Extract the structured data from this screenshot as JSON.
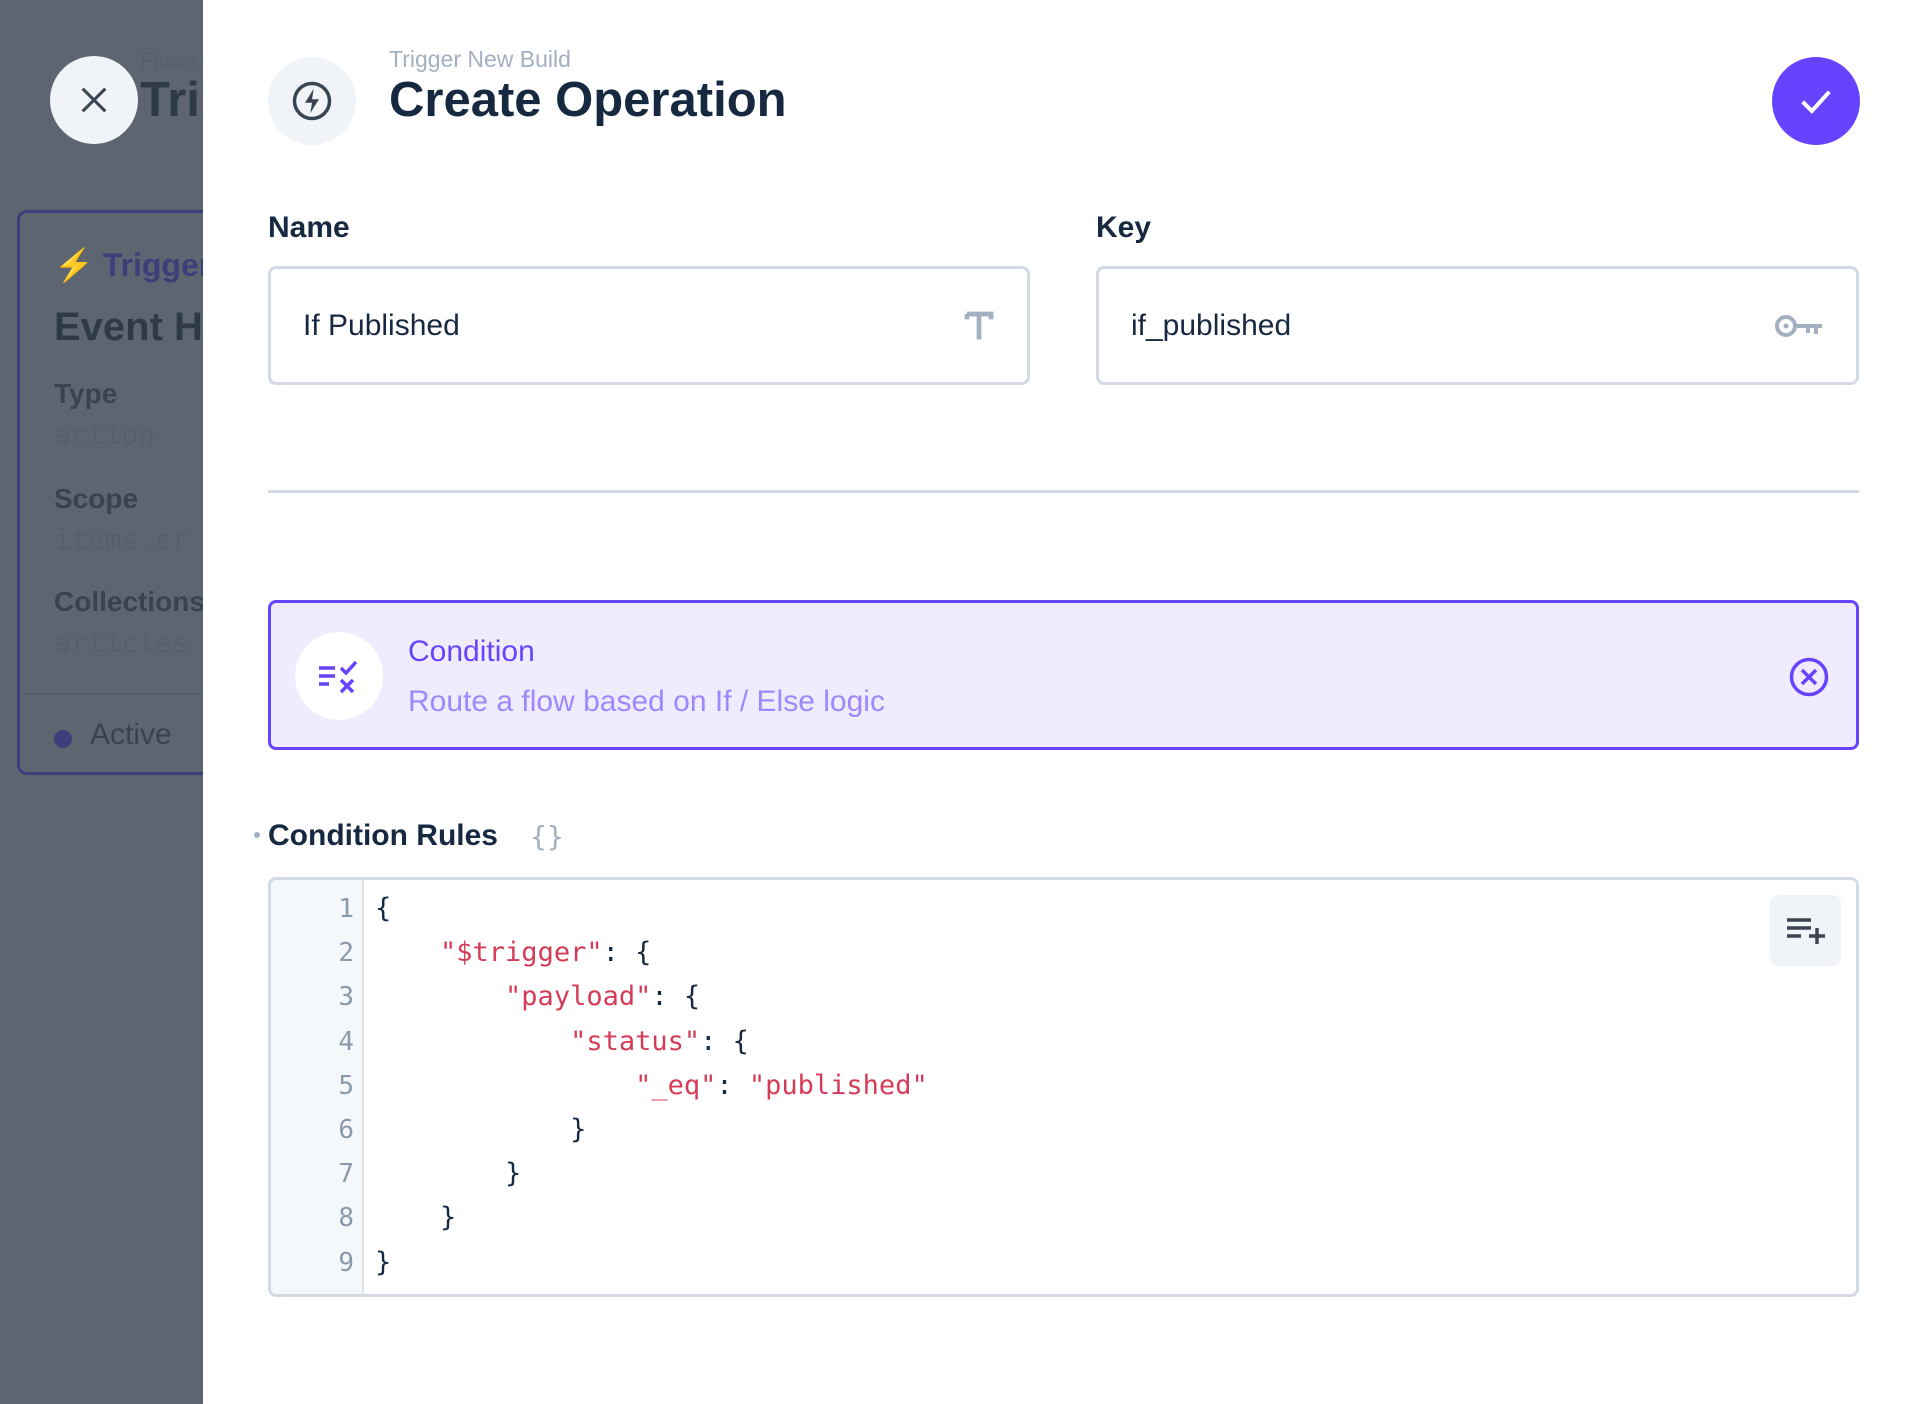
{
  "background": {
    "breadcrumb": "Flows",
    "title": "Tri",
    "card": {
      "trigger_label": "Trigger",
      "title": "Event H",
      "fields": [
        {
          "label": "Type",
          "value": "action"
        },
        {
          "label": "Scope",
          "value": "items.cr"
        },
        {
          "label": "Collections",
          "value": "articles"
        }
      ],
      "status": "Active"
    }
  },
  "header": {
    "breadcrumb": "Trigger New Build",
    "title": "Create Operation",
    "icon": "bolt-icon"
  },
  "fields": {
    "name": {
      "label": "Name",
      "value": "If Published",
      "icon": "text-icon"
    },
    "key": {
      "label": "Key",
      "value": "if_published",
      "icon": "key-icon"
    }
  },
  "operation": {
    "title": "Condition",
    "description": "Route a flow based on If / Else logic",
    "icon": "rule-icon"
  },
  "rules": {
    "label": "Condition Rules",
    "line_numbers": [
      "1",
      "2",
      "3",
      "4",
      "5",
      "6",
      "7",
      "8",
      "9"
    ],
    "lines": [
      [
        {
          "t": "{"
        }
      ],
      [
        {
          "t": "    "
        },
        {
          "t": "\"$trigger\"",
          "s": 1
        },
        {
          "t": ": {"
        }
      ],
      [
        {
          "t": "        "
        },
        {
          "t": "\"payload\"",
          "s": 1
        },
        {
          "t": ": {"
        }
      ],
      [
        {
          "t": "            "
        },
        {
          "t": "\"status\"",
          "s": 1
        },
        {
          "t": ": {"
        }
      ],
      [
        {
          "t": "                "
        },
        {
          "t": "\"_eq\"",
          "s": 1
        },
        {
          "t": ": "
        },
        {
          "t": "\"published\"",
          "s": 1
        }
      ],
      [
        {
          "t": "            }"
        }
      ],
      [
        {
          "t": "        }"
        }
      ],
      [
        {
          "t": "    }"
        }
      ],
      [
        {
          "t": "}"
        }
      ]
    ]
  },
  "colors": {
    "accent": "#6644ff",
    "accent_bg": "#f0ecff",
    "string": "#d43c57"
  }
}
